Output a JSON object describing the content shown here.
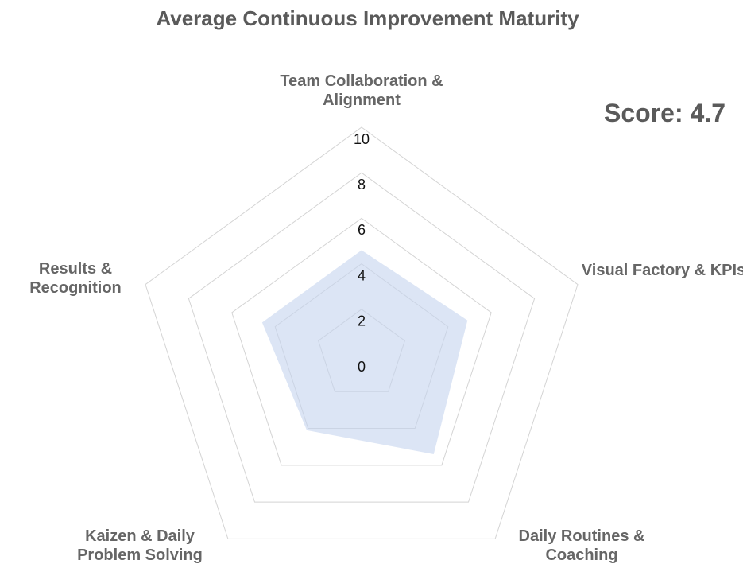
{
  "chart_data": {
    "type": "radar",
    "title": "Average Continuous Improvement Maturity",
    "score_label": "Score: 4.7",
    "categories": [
      "Team Collaboration & Alignment",
      "Visual Factory & KPIs",
      "Daily Routines & Coaching",
      "Kaizen & Daily Problem Solving",
      "Results & Recognition"
    ],
    "values": [
      4.6,
      4.9,
      5.4,
      4.1,
      4.6
    ],
    "color": "#c5d3ee",
    "ylim": [
      0,
      10
    ],
    "yticks": [
      0,
      2,
      4,
      6,
      8,
      10
    ],
    "grid": true
  }
}
